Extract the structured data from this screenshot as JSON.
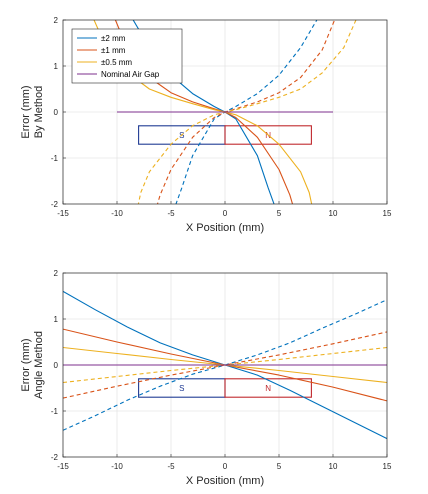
{
  "colors": {
    "blue": "#0072BD",
    "red": "#D95319",
    "orange": "#EDB120",
    "purple": "#7E2F8E",
    "magnet_s": "#1F3A93",
    "magnet_n": "#C0282D",
    "grid": "#E6E6E6",
    "axis": "#262626"
  },
  "chart_data": [
    {
      "type": "line",
      "xlabel": "X Position (mm)",
      "ylabel": [
        "Error (mm)",
        "By Method"
      ],
      "xlim": [
        -15,
        15
      ],
      "ylim": [
        -2,
        2
      ],
      "xticks": [
        "-15",
        "-10",
        "-5",
        "0",
        "5",
        "10",
        "15"
      ],
      "yticks": [
        "2",
        "1",
        "0",
        "-1",
        "-2"
      ],
      "grid": true,
      "legend": {
        "placement": "top-left",
        "entries": [
          "±2 mm",
          "±1 mm",
          "±0.5 mm",
          "Nominal Air Gap"
        ]
      },
      "magnet": {
        "x_range": [
          -8,
          8
        ],
        "y_range": [
          -0.7,
          -0.3
        ],
        "south_label": "S",
        "north_label": "N"
      },
      "series": [
        {
          "name": "±2 mm",
          "color": "blue",
          "dash": false,
          "x": [
            -9,
            -7,
            -5,
            -3,
            -1,
            0,
            1,
            3,
            4,
            5
          ],
          "y": [
            2.2,
            1.4,
            0.8,
            0.4,
            0.12,
            0.0,
            -0.15,
            -0.95,
            -1.65,
            -2.3
          ]
        },
        {
          "name": "±2 mm",
          "color": "blue",
          "dash": true,
          "x": [
            -5,
            -4,
            -3,
            -1,
            0,
            1,
            3,
            5,
            7,
            9
          ],
          "y": [
            -2.3,
            -1.65,
            -0.95,
            -0.15,
            0.0,
            0.12,
            0.4,
            0.8,
            1.4,
            2.2
          ]
        },
        {
          "name": "±1 mm",
          "color": "red",
          "dash": false,
          "x": [
            -10.5,
            -9,
            -7,
            -5,
            -3,
            -1,
            0,
            1,
            3,
            5,
            6,
            6.5
          ],
          "y": [
            2.2,
            1.35,
            0.75,
            0.42,
            0.22,
            0.07,
            0.0,
            -0.12,
            -0.55,
            -1.25,
            -1.8,
            -2.2
          ]
        },
        {
          "name": "±1 mm",
          "color": "red",
          "dash": true,
          "x": [
            -6.5,
            -6,
            -5,
            -3,
            -1,
            0,
            1,
            3,
            5,
            7,
            9,
            10.5
          ],
          "y": [
            -2.2,
            -1.8,
            -1.25,
            -0.55,
            -0.12,
            0.0,
            0.07,
            0.22,
            0.42,
            0.75,
            1.35,
            2.2
          ]
        },
        {
          "name": "±0.5 mm",
          "color": "orange",
          "dash": false,
          "x": [
            -12.5,
            -11,
            -9,
            -7,
            -5,
            -3,
            -1,
            0,
            1,
            3,
            5,
            7,
            7.8,
            8.2
          ],
          "y": [
            2.2,
            1.4,
            0.85,
            0.5,
            0.32,
            0.18,
            0.05,
            0.0,
            -0.06,
            -0.3,
            -0.7,
            -1.3,
            -1.75,
            -2.2
          ]
        },
        {
          "name": "±0.5 mm",
          "color": "orange",
          "dash": true,
          "x": [
            -8.2,
            -7.8,
            -7,
            -5,
            -3,
            -1,
            0,
            1,
            3,
            5,
            7,
            9,
            11,
            12.5
          ],
          "y": [
            -2.2,
            -1.75,
            -1.3,
            -0.7,
            -0.3,
            -0.06,
            0.0,
            0.05,
            0.18,
            0.32,
            0.5,
            0.85,
            1.4,
            2.2
          ]
        },
        {
          "name": "Nominal Air Gap",
          "color": "purple",
          "dash": false,
          "x": [
            -10,
            10
          ],
          "y": [
            0,
            0
          ]
        }
      ]
    },
    {
      "type": "line",
      "xlabel": "X Position (mm)",
      "ylabel": [
        "Error (mm)",
        "Angle Method"
      ],
      "xlim": [
        -15,
        15
      ],
      "ylim": [
        -2,
        2
      ],
      "xticks": [
        "-15",
        "-10",
        "-5",
        "0",
        "5",
        "10",
        "15"
      ],
      "yticks": [
        "2",
        "1",
        "0",
        "-1",
        "-2"
      ],
      "grid": true,
      "magnet": {
        "x_range": [
          -8,
          8
        ],
        "y_range": [
          -0.7,
          -0.3
        ],
        "south_label": "S",
        "north_label": "N"
      },
      "series": [
        {
          "name": "±2 mm",
          "color": "blue",
          "dash": false,
          "x": [
            -15,
            -12,
            -9,
            -6,
            -3,
            0,
            3,
            6,
            9,
            12,
            15
          ],
          "y": [
            1.6,
            1.2,
            0.82,
            0.48,
            0.22,
            0.0,
            -0.22,
            -0.55,
            -0.9,
            -1.25,
            -1.6
          ]
        },
        {
          "name": "±2 mm",
          "color": "blue",
          "dash": true,
          "x": [
            -15,
            -12,
            -9,
            -6,
            -3,
            0,
            3,
            6,
            9,
            12,
            15
          ],
          "y": [
            -1.42,
            -1.1,
            -0.76,
            -0.46,
            -0.2,
            0.0,
            0.22,
            0.48,
            0.8,
            1.1,
            1.42
          ]
        },
        {
          "name": "±1 mm",
          "color": "red",
          "dash": false,
          "x": [
            -15,
            -10,
            -5,
            0,
            5,
            10,
            15
          ],
          "y": [
            0.78,
            0.5,
            0.24,
            0.0,
            -0.22,
            -0.48,
            -0.78
          ]
        },
        {
          "name": "±1 mm",
          "color": "red",
          "dash": true,
          "x": [
            -15,
            -10,
            -5,
            0,
            5,
            10,
            15
          ],
          "y": [
            -0.72,
            -0.46,
            -0.22,
            0.0,
            0.22,
            0.46,
            0.72
          ]
        },
        {
          "name": "±0.5 mm",
          "color": "orange",
          "dash": false,
          "x": [
            -15,
            -10,
            -5,
            0,
            5,
            10,
            15
          ],
          "y": [
            0.38,
            0.25,
            0.12,
            0.0,
            -0.12,
            -0.25,
            -0.38
          ]
        },
        {
          "name": "±0.5 mm",
          "color": "orange",
          "dash": true,
          "x": [
            -15,
            -10,
            -5,
            0,
            5,
            10,
            15
          ],
          "y": [
            -0.38,
            -0.25,
            -0.12,
            0.0,
            0.12,
            0.25,
            0.38
          ]
        },
        {
          "name": "Nominal Air Gap",
          "color": "purple",
          "dash": false,
          "x": [
            -15,
            15
          ],
          "y": [
            0,
            0
          ]
        }
      ]
    }
  ]
}
